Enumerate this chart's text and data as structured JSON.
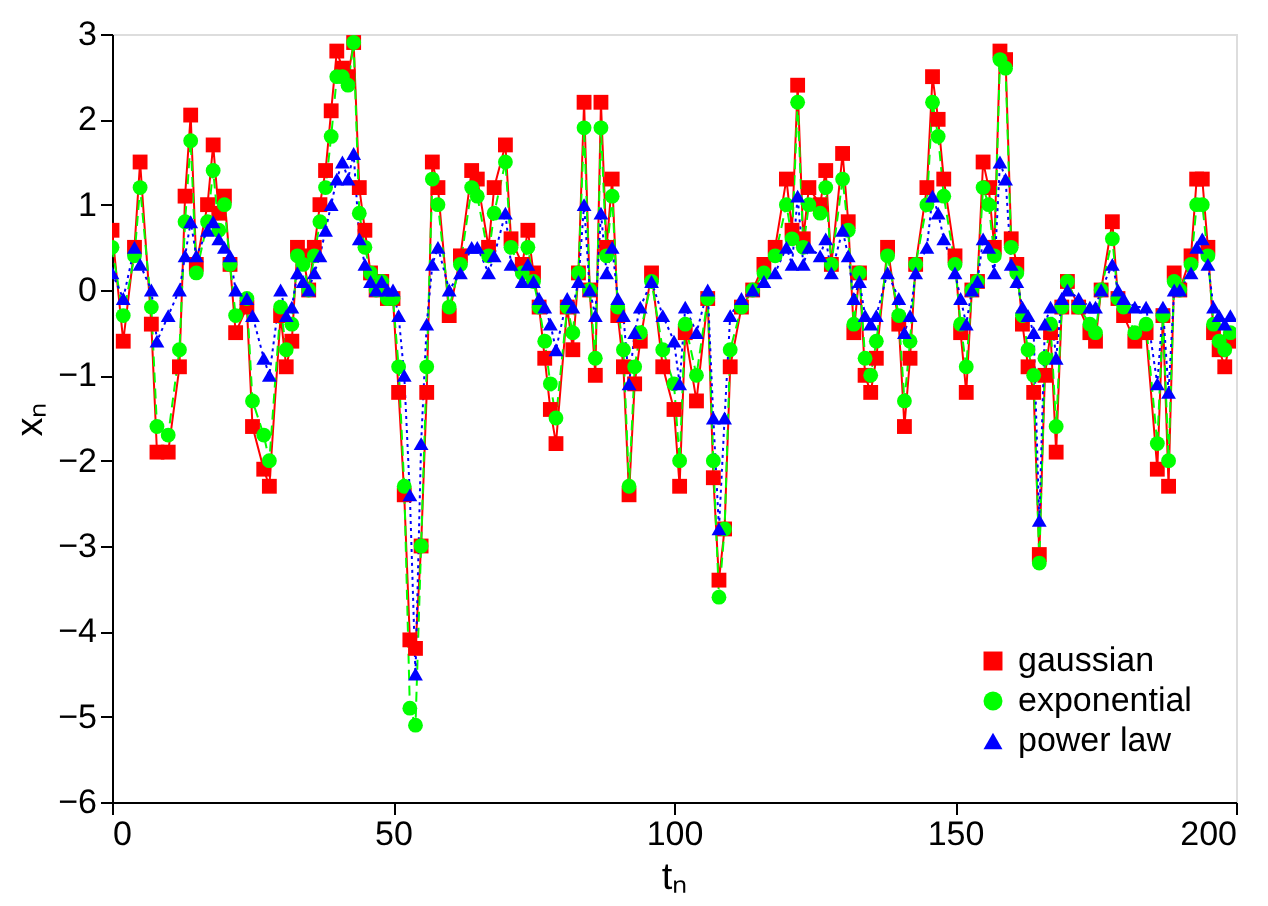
{
  "chart_data": {
    "type": "line",
    "xlabel": "tₙ",
    "ylabel": "xₙ",
    "xlim": [
      0,
      200
    ],
    "xticks": [
      0,
      50,
      100,
      150,
      200
    ],
    "ylim": [
      -6,
      3
    ],
    "yticks": [
      -6,
      -5,
      -4,
      -3,
      -2,
      -1,
      0,
      1,
      2,
      3
    ],
    "grid": false,
    "legend": "bottom right",
    "x": [
      0,
      2,
      4,
      5,
      7,
      8,
      10,
      12,
      13,
      14,
      15,
      17,
      18,
      19,
      20,
      21,
      22,
      24,
      25,
      27,
      28,
      30,
      31,
      32,
      33,
      34,
      35,
      36,
      37,
      38,
      39,
      40,
      41,
      42,
      43,
      44,
      45,
      46,
      47,
      48,
      49,
      50,
      51,
      52,
      53,
      54,
      55,
      56,
      57,
      58,
      60,
      62,
      64,
      65,
      67,
      68,
      70,
      71,
      73,
      74,
      75,
      76,
      77,
      78,
      79,
      81,
      82,
      83,
      84,
      85,
      86,
      87,
      88,
      89,
      90,
      91,
      92,
      93,
      94,
      96,
      98,
      100,
      101,
      102,
      104,
      106,
      107,
      108,
      109,
      110,
      112,
      114,
      116,
      118,
      120,
      121,
      122,
      123,
      124,
      126,
      127,
      128,
      130,
      131,
      132,
      133,
      134,
      135,
      136,
      138,
      140,
      141,
      142,
      143,
      145,
      146,
      147,
      148,
      150,
      151,
      152,
      153,
      154,
      155,
      156,
      157,
      158,
      159,
      160,
      161,
      162,
      163,
      164,
      165,
      166,
      167,
      168,
      169,
      170,
      172,
      174,
      175,
      176,
      178,
      179,
      180,
      182,
      184,
      186,
      187,
      188,
      189,
      190,
      192,
      193,
      194,
      195,
      196,
      197,
      198,
      199
    ],
    "series": [
      {
        "name": "gaussian",
        "color": "#ff0000",
        "marker": "square",
        "line_style": "solid",
        "values": [
          0.7,
          -0.6,
          0.5,
          1.5,
          -0.4,
          -1.9,
          -1.9,
          -0.9,
          1.1,
          2.05,
          0.3,
          1.0,
          1.7,
          0.9,
          1.1,
          0.3,
          -0.5,
          -0.2,
          -1.6,
          -2.1,
          -2.3,
          -0.3,
          -0.9,
          -0.6,
          0.5,
          0.4,
          0.0,
          0.5,
          1.0,
          1.4,
          2.1,
          2.8,
          2.6,
          2.5,
          2.9,
          1.2,
          0.7,
          0.2,
          0.0,
          0.1,
          -0.1,
          -0.1,
          -1.2,
          -2.4,
          -4.1,
          -4.2,
          -3.0,
          -1.2,
          1.5,
          1.2,
          -0.3,
          0.4,
          1.4,
          1.3,
          0.5,
          1.2,
          1.7,
          0.6,
          0.3,
          0.7,
          0.2,
          -0.2,
          -0.8,
          -1.4,
          -1.8,
          -0.2,
          -0.7,
          0.2,
          2.2,
          0.0,
          -1.0,
          2.2,
          0.5,
          1.3,
          -0.3,
          -0.9,
          -2.4,
          -1.1,
          -0.6,
          0.2,
          -0.9,
          -1.4,
          -2.3,
          -0.5,
          -1.3,
          -0.1,
          -2.2,
          -3.4,
          -2.8,
          -0.9,
          -0.2,
          0.0,
          0.3,
          0.5,
          1.3,
          0.7,
          2.4,
          0.6,
          1.2,
          1.0,
          1.4,
          0.3,
          1.6,
          0.8,
          -0.5,
          0.2,
          -1.0,
          -1.2,
          -0.8,
          0.5,
          -0.4,
          -1.6,
          -0.8,
          0.3,
          1.2,
          2.5,
          2.0,
          1.3,
          0.4,
          -0.5,
          -1.2,
          0.0,
          0.1,
          1.5,
          1.2,
          0.5,
          2.8,
          2.7,
          0.6,
          0.3,
          -0.4,
          -0.9,
          -1.2,
          -3.1,
          -1.0,
          -0.5,
          -1.9,
          -0.2,
          0.1,
          -0.2,
          -0.5,
          -0.6,
          0.0,
          0.8,
          -0.1,
          -0.3,
          -0.6,
          -0.5,
          -2.1,
          -0.3,
          -2.3,
          0.2,
          0.0,
          0.4,
          1.3,
          1.3,
          0.5,
          -0.5,
          -0.7,
          -0.9,
          -0.6
        ]
      },
      {
        "name": "exponential",
        "color": "#00ff00",
        "marker": "circle",
        "line_style": "dashed",
        "values": [
          0.5,
          -0.3,
          0.4,
          1.2,
          -0.2,
          -1.6,
          -1.7,
          -0.7,
          0.8,
          1.75,
          0.2,
          0.8,
          1.4,
          0.7,
          1.0,
          0.3,
          -0.3,
          -0.1,
          -1.3,
          -1.7,
          -2.0,
          -0.2,
          -0.7,
          -0.4,
          0.4,
          0.3,
          0.0,
          0.4,
          0.8,
          1.2,
          1.8,
          2.5,
          2.5,
          2.4,
          2.9,
          0.9,
          0.5,
          0.2,
          0.0,
          0.1,
          -0.1,
          -0.1,
          -0.9,
          -2.3,
          -4.9,
          -5.1,
          -3.0,
          -0.9,
          1.3,
          1.0,
          -0.2,
          0.3,
          1.2,
          1.1,
          0.4,
          0.9,
          1.5,
          0.5,
          0.2,
          0.5,
          0.1,
          -0.2,
          -0.6,
          -1.1,
          -1.5,
          -0.2,
          -0.5,
          0.2,
          1.9,
          0.0,
          -0.8,
          1.9,
          0.4,
          1.1,
          -0.2,
          -0.7,
          -2.3,
          -0.9,
          -0.5,
          0.1,
          -0.7,
          -1.1,
          -2.0,
          -0.4,
          -1.0,
          -0.1,
          -2.0,
          -3.6,
          -2.8,
          -0.7,
          -0.2,
          0.0,
          0.2,
          0.4,
          1.0,
          0.6,
          2.2,
          0.5,
          1.0,
          0.9,
          1.2,
          0.3,
          1.3,
          0.7,
          -0.4,
          0.2,
          -0.8,
          -1.0,
          -0.6,
          0.4,
          -0.3,
          -1.3,
          -0.6,
          0.3,
          1.0,
          2.2,
          1.8,
          1.1,
          0.3,
          -0.4,
          -0.9,
          0.0,
          0.1,
          1.2,
          1.0,
          0.4,
          2.7,
          2.6,
          0.5,
          0.2,
          -0.3,
          -0.7,
          -1.0,
          -3.2,
          -0.8,
          -0.4,
          -1.6,
          -0.2,
          0.1,
          -0.2,
          -0.4,
          -0.5,
          0.0,
          0.6,
          -0.1,
          -0.2,
          -0.5,
          -0.4,
          -1.8,
          -0.3,
          -2.0,
          0.1,
          0.0,
          0.3,
          1.0,
          1.0,
          0.4,
          -0.4,
          -0.6,
          -0.7,
          -0.5
        ]
      },
      {
        "name": "power law",
        "color": "#0000ff",
        "marker": "triangle",
        "line_style": "dotted",
        "values": [
          0.2,
          -0.1,
          0.5,
          0.3,
          0.0,
          -0.6,
          -0.3,
          0.0,
          0.4,
          0.8,
          0.4,
          0.7,
          0.8,
          0.6,
          0.5,
          0.4,
          0.0,
          -0.1,
          -0.3,
          -0.8,
          -1.0,
          0.0,
          -0.3,
          -0.2,
          0.2,
          0.1,
          0.0,
          0.2,
          0.4,
          0.7,
          1.0,
          1.3,
          1.5,
          1.3,
          1.6,
          0.6,
          0.3,
          0.1,
          0.0,
          0.1,
          0.0,
          0.0,
          -0.3,
          -1.0,
          -2.4,
          -4.5,
          -1.8,
          -0.4,
          0.3,
          0.5,
          0.0,
          0.2,
          0.5,
          0.5,
          0.2,
          0.4,
          0.9,
          0.3,
          0.1,
          0.3,
          0.1,
          -0.1,
          -0.2,
          -0.4,
          -0.7,
          -0.1,
          -0.2,
          0.1,
          1.0,
          0.0,
          -0.3,
          0.9,
          0.2,
          0.5,
          -0.1,
          -0.3,
          -1.1,
          -0.5,
          -0.2,
          0.1,
          -0.3,
          -0.6,
          -1.1,
          -0.2,
          -0.5,
          0.0,
          -1.5,
          -2.8,
          -1.5,
          -0.3,
          -0.1,
          0.0,
          0.1,
          0.2,
          0.5,
          0.3,
          1.1,
          0.3,
          0.5,
          0.4,
          0.6,
          0.2,
          0.7,
          0.4,
          -0.1,
          0.1,
          -0.3,
          -0.4,
          -0.3,
          0.2,
          -0.1,
          -0.5,
          -0.3,
          0.2,
          0.5,
          1.1,
          0.9,
          0.6,
          0.2,
          -0.1,
          -0.4,
          0.0,
          0.1,
          0.6,
          0.5,
          0.2,
          1.5,
          1.3,
          0.3,
          0.1,
          -0.2,
          -0.3,
          -0.5,
          -2.7,
          -0.4,
          -0.2,
          -0.8,
          -0.1,
          0.0,
          -0.1,
          -0.2,
          -0.2,
          0.0,
          0.3,
          0.0,
          -0.1,
          -0.2,
          -0.2,
          -1.1,
          -0.2,
          -1.2,
          0.0,
          0.0,
          0.2,
          0.5,
          0.6,
          0.3,
          -0.2,
          -0.3,
          -0.4,
          -0.3
        ]
      }
    ]
  }
}
